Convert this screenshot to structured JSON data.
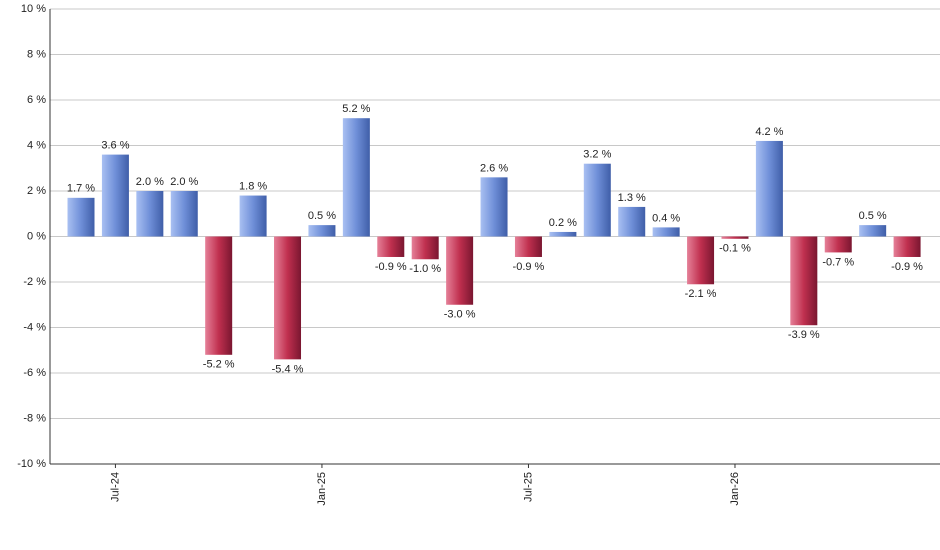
{
  "chart_data": {
    "type": "bar",
    "categories": [
      null,
      "Jul-24",
      null,
      null,
      null,
      null,
      null,
      "Jan-25",
      null,
      null,
      null,
      null,
      null,
      "Jul-25",
      null,
      null,
      null,
      null,
      null,
      "Jan-26",
      null,
      null,
      null,
      null,
      null
    ],
    "values": [
      1.7,
      3.6,
      2.0,
      2.0,
      -5.2,
      1.8,
      -5.4,
      0.5,
      5.2,
      -0.9,
      -1.0,
      -3.0,
      2.6,
      -0.9,
      0.2,
      3.2,
      1.3,
      0.4,
      -2.1,
      -0.1,
      4.2,
      -3.9,
      -0.7,
      0.5,
      -0.9
    ],
    "value_labels": [
      "1.7 %",
      "3.6 %",
      "2.0 %",
      "2.0 %",
      "-5.2 %",
      "1.8 %",
      "-5.4 %",
      "0.5 %",
      "5.2 %",
      "-0.9 %",
      "-1.0 %",
      "-3.0 %",
      "2.6 %",
      "-0.9 %",
      "0.2 %",
      "3.2 %",
      "1.3 %",
      "0.4 %",
      "-2.1 %",
      "-0.1 %",
      "4.2 %",
      "-3.9 %",
      "-0.7 %",
      "0.5 %",
      "-0.9 %"
    ],
    "positive_color": "#6f8fd8",
    "negative_color": "#c0304f",
    "ylim": [
      -10,
      10
    ],
    "yticks": [
      {
        "value": -10,
        "label": "-10 %"
      },
      {
        "value": -8,
        "label": "-8 %"
      },
      {
        "value": -6,
        "label": "-6 %"
      },
      {
        "value": -4,
        "label": "-4 %"
      },
      {
        "value": -2,
        "label": "-2 %"
      },
      {
        "value": 0,
        "label": "0 %"
      },
      {
        "value": 2,
        "label": "2 %"
      },
      {
        "value": 4,
        "label": "4 %"
      },
      {
        "value": 6,
        "label": "6 %"
      },
      {
        "value": 8,
        "label": "8 %"
      },
      {
        "value": 10,
        "label": "10 %"
      }
    ],
    "grid": true
  }
}
